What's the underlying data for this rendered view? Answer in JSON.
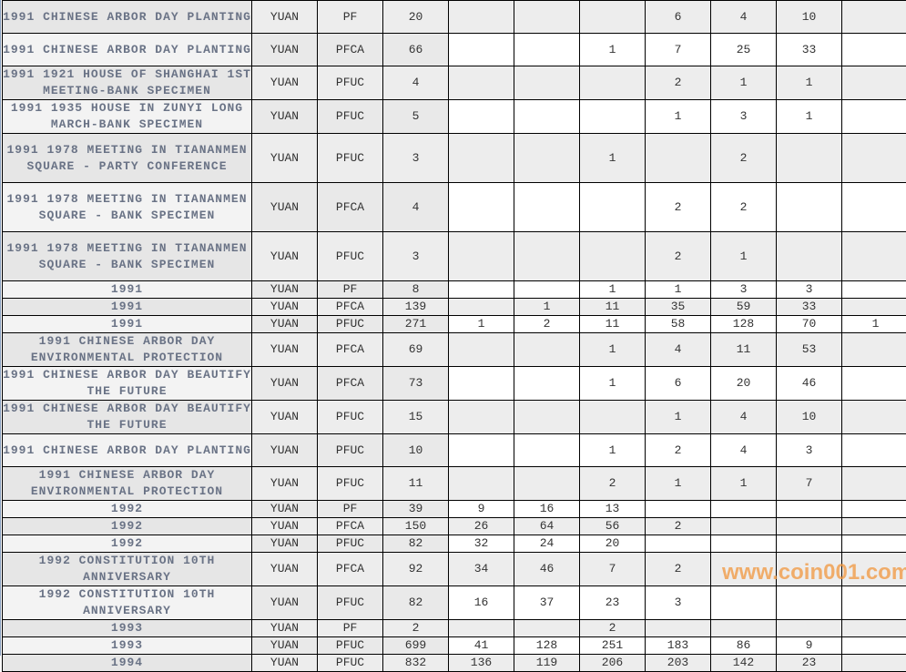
{
  "rows": [
    {
      "desc": "1991 CHINESE ARBOR DAY PLANTING",
      "unit": "YUAN",
      "grade": "PF",
      "total": "20",
      "c": [
        "",
        "",
        "",
        "6",
        "4",
        "10",
        ""
      ],
      "h": 36
    },
    {
      "desc": "1991 CHINESE ARBOR DAY PLANTING",
      "unit": "YUAN",
      "grade": "PFCA",
      "total": "66",
      "c": [
        "",
        "",
        "1",
        "7",
        "25",
        "33",
        ""
      ],
      "h": 36
    },
    {
      "desc": "1991 1921 HOUSE OF SHANGHAI 1ST MEETING-BANK SPECIMEN",
      "unit": "YUAN",
      "grade": "PFUC",
      "total": "4",
      "c": [
        "",
        "",
        "",
        "2",
        "1",
        "1",
        ""
      ],
      "h": 36
    },
    {
      "desc": "1991 1935 HOUSE IN ZUNYI LONG MARCH-BANK SPECIMEN",
      "unit": "YUAN",
      "grade": "PFUC",
      "total": "5",
      "c": [
        "",
        "",
        "",
        "1",
        "3",
        "1",
        ""
      ],
      "h": 36
    },
    {
      "desc": "1991 1978 MEETING IN TIANANMEN SQUARE - PARTY CONFERENCE",
      "unit": "YUAN",
      "grade": "PFUC",
      "total": "3",
      "c": [
        "",
        "",
        "1",
        "",
        "2",
        "",
        ""
      ],
      "h": 54
    },
    {
      "desc": "1991 1978 MEETING IN TIANANMEN SQUARE - BANK SPECIMEN",
      "unit": "YUAN",
      "grade": "PFCA",
      "total": "4",
      "c": [
        "",
        "",
        "",
        "2",
        "2",
        "",
        ""
      ],
      "h": 54
    },
    {
      "desc": "1991 1978 MEETING IN TIANANMEN SQUARE - BANK SPECIMEN",
      "unit": "YUAN",
      "grade": "PFUC",
      "total": "3",
      "c": [
        "",
        "",
        "",
        "2",
        "1",
        "",
        ""
      ],
      "h": 54
    },
    {
      "desc": "1991",
      "unit": "YUAN",
      "grade": "PF",
      "total": "8",
      "c": [
        "",
        "",
        "1",
        "1",
        "3",
        "3",
        ""
      ],
      "h": 18
    },
    {
      "desc": "1991",
      "unit": "YUAN",
      "grade": "PFCA",
      "total": "139",
      "c": [
        "",
        "1",
        "11",
        "35",
        "59",
        "33",
        ""
      ],
      "h": 18
    },
    {
      "desc": "1991",
      "unit": "YUAN",
      "grade": "PFUC",
      "total": "271",
      "c": [
        "1",
        "2",
        "11",
        "58",
        "128",
        "70",
        "1"
      ],
      "h": 18
    },
    {
      "desc": "1991 CHINESE ARBOR DAY ENVIRONMENTAL PROTECTION",
      "unit": "YUAN",
      "grade": "PFCA",
      "total": "69",
      "c": [
        "",
        "",
        "1",
        "4",
        "11",
        "53",
        ""
      ],
      "h": 36
    },
    {
      "desc": "1991 CHINESE ARBOR DAY BEAUTIFY THE FUTURE",
      "unit": "YUAN",
      "grade": "PFCA",
      "total": "73",
      "c": [
        "",
        "",
        "1",
        "6",
        "20",
        "46",
        ""
      ],
      "h": 36
    },
    {
      "desc": "1991 CHINESE ARBOR DAY BEAUTIFY THE FUTURE",
      "unit": "YUAN",
      "grade": "PFUC",
      "total": "15",
      "c": [
        "",
        "",
        "",
        "1",
        "4",
        "10",
        ""
      ],
      "h": 36
    },
    {
      "desc": "1991 CHINESE ARBOR DAY PLANTING",
      "unit": "YUAN",
      "grade": "PFUC",
      "total": "10",
      "c": [
        "",
        "",
        "1",
        "2",
        "4",
        "3",
        ""
      ],
      "h": 36
    },
    {
      "desc": "1991 CHINESE ARBOR DAY ENVIRONMENTAL PROTECTION",
      "unit": "YUAN",
      "grade": "PFUC",
      "total": "11",
      "c": [
        "",
        "",
        "2",
        "1",
        "1",
        "7",
        ""
      ],
      "h": 36
    },
    {
      "desc": "1992",
      "unit": "YUAN",
      "grade": "PF",
      "total": "39",
      "c": [
        "9",
        "16",
        "13",
        "",
        "",
        "",
        ""
      ],
      "h": 18
    },
    {
      "desc": "1992",
      "unit": "YUAN",
      "grade": "PFCA",
      "total": "150",
      "c": [
        "26",
        "64",
        "56",
        "2",
        "",
        "",
        ""
      ],
      "h": 18
    },
    {
      "desc": "1992",
      "unit": "YUAN",
      "grade": "PFUC",
      "total": "82",
      "c": [
        "32",
        "24",
        "20",
        "",
        "",
        "",
        ""
      ],
      "h": 18
    },
    {
      "desc": "1992 CONSTITUTION 10TH ANNIVERSARY",
      "unit": "YUAN",
      "grade": "PFCA",
      "total": "92",
      "c": [
        "34",
        "46",
        "7",
        "2",
        "",
        "",
        ""
      ],
      "h": 36
    },
    {
      "desc": "1992 CONSTITUTION 10TH ANNIVERSARY",
      "unit": "YUAN",
      "grade": "PFUC",
      "total": "82",
      "c": [
        "16",
        "37",
        "23",
        "3",
        "",
        "",
        ""
      ],
      "h": 36
    },
    {
      "desc": "1993",
      "unit": "YUAN",
      "grade": "PF",
      "total": "2",
      "c": [
        "",
        "",
        "2",
        "",
        "",
        "",
        ""
      ],
      "h": 18
    },
    {
      "desc": "1993",
      "unit": "YUAN",
      "grade": "PFUC",
      "total": "699",
      "c": [
        "41",
        "128",
        "251",
        "183",
        "86",
        "9",
        ""
      ],
      "h": 18
    },
    {
      "desc": "1994",
      "unit": "YUAN",
      "grade": "PFUC",
      "total": "832",
      "c": [
        "136",
        "119",
        "206",
        "203",
        "142",
        "23",
        ""
      ],
      "h": 18
    }
  ],
  "watermark": "www.coin001.com"
}
